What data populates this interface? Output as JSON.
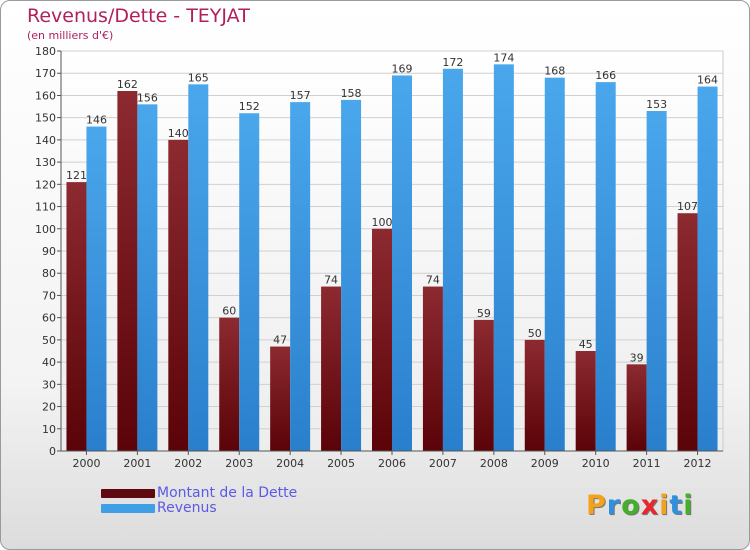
{
  "chart_data": {
    "type": "bar",
    "title": "Revenus/Dette - TEYJAT",
    "subtitle": "(en milliers d'€)",
    "categories": [
      "2000",
      "2001",
      "2002",
      "2003",
      "2004",
      "2005",
      "2006",
      "2007",
      "2008",
      "2009",
      "2010",
      "2011",
      "2012"
    ],
    "series": [
      {
        "name": "Montant de la Dette",
        "color": "#7a1218",
        "values": [
          121,
          162,
          140,
          60,
          47,
          74,
          100,
          74,
          59,
          50,
          45,
          39,
          107
        ]
      },
      {
        "name": "Revenus",
        "color": "#3f9fe6",
        "values": [
          146,
          156,
          165,
          152,
          157,
          158,
          169,
          172,
          174,
          168,
          166,
          153,
          164
        ]
      }
    ],
    "ylim": [
      0,
      180
    ],
    "yticks": [
      0,
      10,
      20,
      30,
      40,
      50,
      60,
      70,
      80,
      90,
      100,
      110,
      120,
      130,
      140,
      150,
      160,
      170,
      180
    ],
    "grid": true,
    "legend_position": "bottom-left"
  },
  "logo": {
    "letters": [
      {
        "char": "P",
        "color": "#f2a21b"
      },
      {
        "char": "r",
        "color": "#2f8fe0"
      },
      {
        "char": "o",
        "color": "#43b02a"
      },
      {
        "char": "x",
        "color": "#e8262c"
      },
      {
        "char": "i",
        "color": "#f2a21b"
      },
      {
        "char": "t",
        "color": "#2f8fe0"
      },
      {
        "char": "i",
        "color": "#43b02a"
      }
    ]
  }
}
